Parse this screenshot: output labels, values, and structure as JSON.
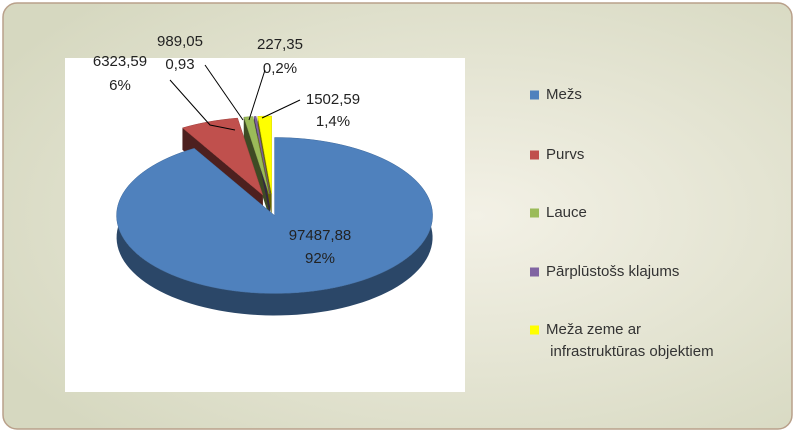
{
  "chart_data": {
    "type": "pie",
    "categories": [
      "Mežs",
      "Purvs",
      "Lauce",
      "Pārplūstošs klajums",
      "Meža zeme ar infrastruktūras objektiem"
    ],
    "values": [
      97487.88,
      6323.59,
      989.05,
      227.35,
      1502.59
    ],
    "value_labels": [
      "97487,88",
      "6323,59",
      "989,05",
      "227,35",
      "1502,59"
    ],
    "percent_labels": [
      "92%",
      "6%",
      "0,93",
      "0,2%",
      "1,4%"
    ],
    "colors": [
      "#4f81bd",
      "#c0504d",
      "#9bbb59",
      "#8064a2",
      "#ffff00"
    ],
    "legend": "right"
  }
}
